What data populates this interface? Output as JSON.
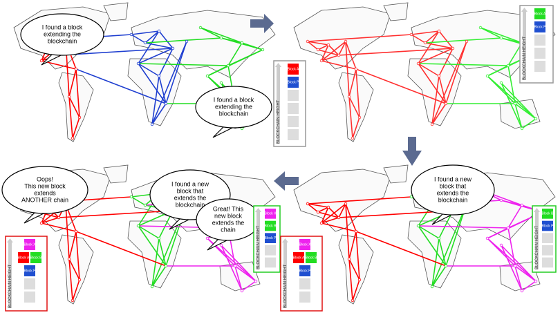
{
  "panels": [
    {
      "bubbles": [
        {
          "lines": [
            "I found a block",
            "extending the",
            "blockchain"
          ]
        },
        {
          "lines": [
            "I found a block",
            "extending the",
            "blockchain"
          ]
        }
      ],
      "stacks": [
        {
          "axis_label": "BLOCKCHAIN HEIGHT",
          "border": "#999999",
          "rows": [
            [
              {
                "label": "Block A",
                "color": "#ff0000"
              }
            ],
            [
              {
                "label": "Block P",
                "color": "#1f4fd0"
              }
            ]
          ]
        }
      ]
    },
    {
      "bubbles": [],
      "stacks": [
        {
          "axis_label": "BLOCKCHAIN HEIGHT",
          "border": "#999999",
          "rows": [
            [
              {
                "label": "Block A",
                "color": "#22dd22"
              }
            ],
            [
              {
                "label": "Block P",
                "color": "#1f4fd0"
              }
            ]
          ]
        }
      ]
    },
    {
      "bubbles": [
        {
          "lines": [
            "Oops!",
            "This new block",
            "extends",
            "ANOTHER chain"
          ]
        },
        {
          "lines": [
            "I found a new",
            "block that",
            "extends the",
            "blockchain"
          ]
        },
        {
          "lines": [
            "Great! This",
            "new block",
            "extends the",
            "chain"
          ]
        }
      ],
      "stacks": [
        {
          "axis_label": "BLOCKCHAIN HEIGHT",
          "border": "#e01010",
          "rows": [
            [
              {
                "label": "Block X",
                "color": "#ee22ee"
              }
            ],
            [
              {
                "label": "Block A",
                "color": "#ff0000"
              },
              {
                "label": "Block B",
                "color": "#22dd22"
              }
            ],
            [
              {
                "label": "Block P",
                "color": "#1f4fd0"
              }
            ]
          ]
        },
        {
          "axis_label": "BLOCKCHAIN HEIGHT",
          "border": "#22cc22",
          "rows": [
            [
              {
                "label": "Block X",
                "color": "#ee22ee"
              }
            ],
            [
              {
                "label": "Block B",
                "color": "#22dd22"
              }
            ],
            [
              {
                "label": "Block P",
                "color": "#1f4fd0"
              }
            ]
          ]
        }
      ]
    },
    {
      "bubbles": [
        {
          "lines": [
            "I found a new",
            "block that",
            "extends the",
            "blockchain"
          ]
        }
      ],
      "stacks": [
        {
          "axis_label": "BLOCKCHAIN HEIGHT",
          "border": "#e01010",
          "rows": [
            [
              {
                "label": "Block X",
                "color": "#ee22ee"
              }
            ],
            [
              {
                "label": "Block A",
                "color": "#ff0000"
              },
              {
                "label": "Block B",
                "color": "#22dd22"
              }
            ],
            [
              {
                "label": "Block P",
                "color": "#1f4fd0"
              }
            ]
          ]
        },
        {
          "axis_label": "BLOCKCHAIN HEIGHT",
          "border": "#22cc22",
          "rows": [
            [
              {
                "label": "Block B",
                "color": "#22dd22"
              }
            ],
            [
              {
                "label": "Block P",
                "color": "#1f4fd0"
              }
            ]
          ]
        }
      ]
    }
  ]
}
